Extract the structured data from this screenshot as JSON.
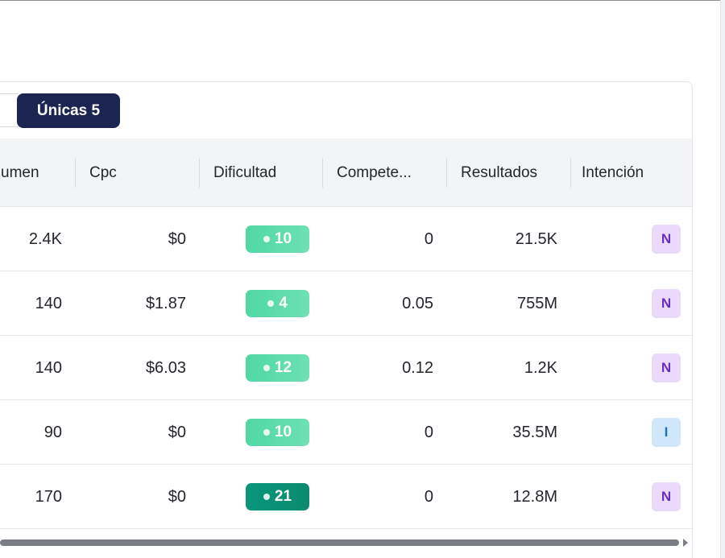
{
  "tabs": {
    "active_label": "Únicas 5"
  },
  "table": {
    "columns": [
      "umen",
      "Cpc",
      "Dificultad",
      "Compete...",
      "Resultados",
      "Intención"
    ],
    "rows": [
      {
        "volume": "2.4K",
        "cpc": "$0",
        "difficulty": "10",
        "competition": "0",
        "results": "21.5K",
        "intent": "N"
      },
      {
        "volume": "140",
        "cpc": "$1.87",
        "difficulty": "4",
        "competition": "0.05",
        "results": "755M",
        "intent": "N"
      },
      {
        "volume": "140",
        "cpc": "$6.03",
        "difficulty": "12",
        "competition": "0.12",
        "results": "1.2K",
        "intent": "N"
      },
      {
        "volume": "90",
        "cpc": "$0",
        "difficulty": "10",
        "competition": "0",
        "results": "35.5M",
        "intent": "I"
      },
      {
        "volume": "170",
        "cpc": "$0",
        "difficulty": "21",
        "competition": "0",
        "results": "12.8M",
        "intent": "N"
      }
    ]
  },
  "colors": {
    "tab_active_bg": "#1c2551",
    "difficulty_easy": "#4fd8a4",
    "difficulty_medium": "#08967a",
    "intent_navigational_bg": "#ead9fb",
    "intent_informational_bg": "#cfe6fb"
  },
  "icons": {
    "scroll_right": "triangle-right-icon"
  }
}
